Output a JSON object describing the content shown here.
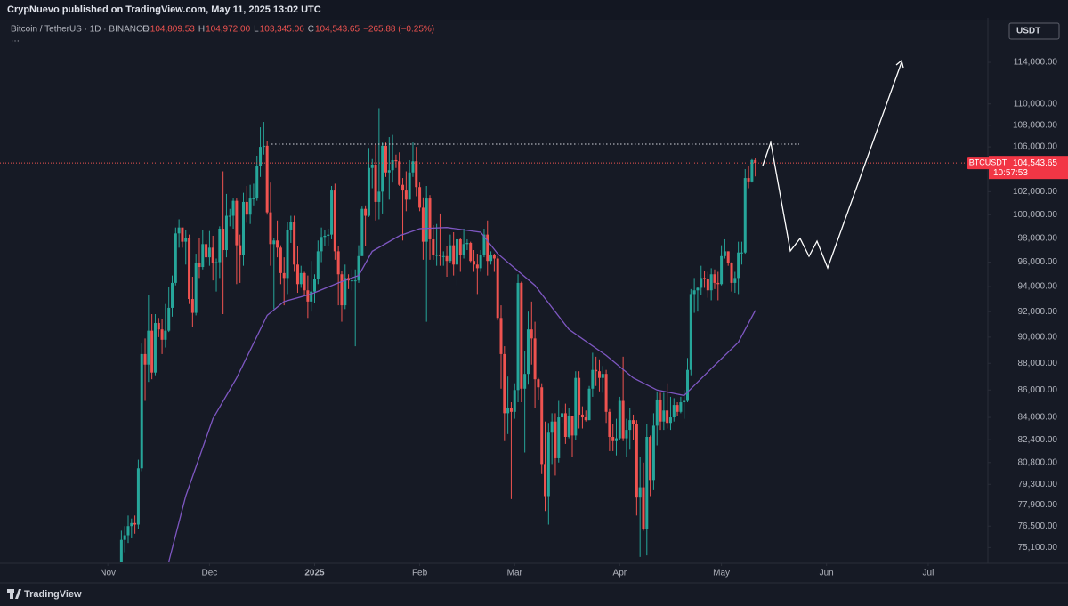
{
  "header": {
    "publisher": "CrypNuevo published on TradingView.com, May 11, 2025 13:02 UTC",
    "symbol": "Bitcoin / TetherUS · 1D · BINANCE",
    "ohlc": [
      {
        "key": "O",
        "value": "104,809.53"
      },
      {
        "key": "H",
        "value": "104,972.00"
      },
      {
        "key": "L",
        "value": "103,345.06"
      },
      {
        "key": "C",
        "value": "104,543.65"
      }
    ],
    "change": "−265.88 (−0.25%)",
    "more": "···",
    "currency": "USDT",
    "brand": "TradingView"
  },
  "chart_data": {
    "type": "candlestick",
    "log_scale": true,
    "up_color": "#26a69a",
    "down_color": "#ef5350",
    "ylim": [
      74150,
      118450
    ],
    "xlim": [
      -35.8,
      255.6
    ],
    "yticks": [
      {
        "value": 114000,
        "label": "114,000.00"
      },
      {
        "value": 110000,
        "label": "110,000.00"
      },
      {
        "value": 108000,
        "label": "108,000.00"
      },
      {
        "value": 106000,
        "label": "106,000.00"
      },
      {
        "value": 102000,
        "label": "102,000.00"
      },
      {
        "value": 100000,
        "label": "100,000.00"
      },
      {
        "value": 98000,
        "label": "98,000.00"
      },
      {
        "value": 96000,
        "label": "96,000.00"
      },
      {
        "value": 94000,
        "label": "94,000.00"
      },
      {
        "value": 92000,
        "label": "92,000.00"
      },
      {
        "value": 90000,
        "label": "90,000.00"
      },
      {
        "value": 88000,
        "label": "88,000.00"
      },
      {
        "value": 86000,
        "label": "86,000.00"
      },
      {
        "value": 84000,
        "label": "84,000.00"
      },
      {
        "value": 82400,
        "label": "82,400.00"
      },
      {
        "value": 80800,
        "label": "80,800.00"
      },
      {
        "value": 79300,
        "label": "79,300.00"
      },
      {
        "value": 77900,
        "label": "77,900.00"
      },
      {
        "value": 76500,
        "label": "76,500.00"
      },
      {
        "value": 75100,
        "label": "75,100.00"
      }
    ],
    "xticks": [
      {
        "value": -4,
        "label": "Nov"
      },
      {
        "value": 26,
        "label": "Dec"
      },
      {
        "value": 57,
        "label": "2025"
      },
      {
        "value": 88,
        "label": "Feb"
      },
      {
        "value": 116,
        "label": "Mar"
      },
      {
        "value": 147,
        "label": "Apr"
      },
      {
        "value": 177,
        "label": "May"
      },
      {
        "value": 208,
        "label": "Jun"
      },
      {
        "value": 238,
        "label": "Jul"
      }
    ],
    "symbol_tag": "BTCUSDT",
    "last_price_label": "104,543.65",
    "countdown": "10:57:53",
    "open": [
      74000,
      75600,
      75900,
      76500,
      76700,
      76600,
      80400,
      88700,
      87900,
      90500,
      87300,
      91100,
      90600,
      89800,
      90500,
      92300,
      94300,
      98400,
      98900,
      97700,
      98000,
      93000,
      91900,
      95900,
      95600,
      97500,
      96400,
      97200,
      95900,
      96000,
      98800,
      97000,
      99900,
      99900,
      101200,
      97400,
      96600,
      101100,
      100000,
      101400,
      101400,
      104300,
      106000,
      106100,
      100200,
      97500,
      97800,
      97200,
      95100,
      94700,
      98700,
      99400,
      95800,
      94200,
      95100,
      93700,
      92800,
      93600,
      94600,
      96900,
      98100,
      98200,
      98300,
      102100,
      96900,
      95000,
      92500,
      94700,
      94500,
      94500,
      94500,
      96500,
      100500,
      99900,
      104100,
      104400,
      101100,
      102000,
      106100,
      103700,
      103900,
      104800,
      104700,
      102600,
      102100,
      101300,
      103700,
      104700,
      102400,
      100600,
      97700,
      101400,
      97900,
      96600,
      96600,
      96500,
      96500,
      96100,
      97400,
      95800,
      97900,
      96600,
      97500,
      97600,
      96100,
      95800,
      95500,
      96600,
      98300,
      96100,
      96600,
      96300,
      91500,
      88700,
      84300,
      84700,
      84400,
      86000,
      94300,
      86100,
      87200,
      90600,
      89900,
      86800,
      86200,
      80700,
      78500,
      82900,
      83700,
      81100,
      84000,
      84300,
      82600,
      84100,
      82700,
      86900,
      84200,
      84000,
      83800,
      86100,
      87500,
      87400,
      86900,
      87200,
      84400,
      82600,
      82300,
      82500,
      85200,
      82500,
      83100,
      83800,
      83500,
      78400,
      79100,
      76300,
      82600,
      79600,
      83400,
      85300,
      83700,
      84500,
      83600,
      84000,
      84900,
      84400,
      85100,
      85200,
      87500,
      93400,
      93700,
      93900,
      94700,
      94600,
      93700,
      95000,
      94300,
      94200,
      96500,
      96900,
      95900,
      94300,
      94700,
      96800,
      96800,
      103200,
      102900,
      104809.53
    ],
    "high": [
      76200,
      76500,
      77200,
      77000,
      77200,
      81000,
      89500,
      89900,
      93300,
      91800,
      91800,
      91500,
      91400,
      92600,
      94000,
      94900,
      98900,
      99600,
      98700,
      98700,
      98300,
      94800,
      96700,
      98000,
      98700,
      97800,
      98600,
      98200,
      96300,
      99000,
      103800,
      101800,
      100500,
      101400,
      101400,
      98300,
      101900,
      102500,
      102600,
      102700,
      105200,
      107800,
      108300,
      106500,
      102800,
      98000,
      99500,
      97400,
      96400,
      99400,
      99900,
      99900,
      97300,
      95700,
      95200,
      94900,
      96100,
      95000,
      97800,
      98900,
      98700,
      98800,
      102500,
      102700,
      97300,
      95300,
      95800,
      95000,
      95400,
      95400,
      97400,
      100700,
      100800,
      105900,
      104900,
      106300,
      109600,
      106400,
      106400,
      106900,
      107100,
      105300,
      105500,
      103200,
      103800,
      104800,
      106400,
      106000,
      102800,
      101500,
      102500,
      101700,
      99100,
      99200,
      100100,
      96900,
      97300,
      98300,
      98500,
      98100,
      98000,
      98800,
      97900,
      97700,
      97000,
      96700,
      97000,
      98800,
      99500,
      96900,
      96700,
      96500,
      92500,
      89300,
      87000,
      85100,
      86500,
      95000,
      94400,
      88900,
      92000,
      92800,
      91200,
      86900,
      86500,
      83700,
      83600,
      84300,
      84300,
      85200,
      84700,
      85000,
      84700,
      84100,
      87400,
      87400,
      84800,
      84500,
      86300,
      88800,
      88500,
      88300,
      87800,
      87500,
      84600,
      83500,
      83900,
      85500,
      88500,
      83900,
      84700,
      84200,
      83800,
      81200,
      80800,
      83500,
      82700,
      84300,
      85900,
      85800,
      85800,
      86500,
      85500,
      85400,
      85100,
      85500,
      86000,
      88400,
      93800,
      94700,
      94000,
      95700,
      95300,
      95200,
      95500,
      95400,
      95200,
      97400,
      97900,
      96900,
      96000,
      95200,
      97700,
      97700,
      104000,
      104300,
      104900,
      104972
    ],
    "low": [
      73500,
      74800,
      75400,
      75700,
      76000,
      76300,
      80200,
      85200,
      86600,
      86800,
      87100,
      90000,
      88700,
      89200,
      90400,
      91600,
      94100,
      97200,
      97200,
      95800,
      92600,
      90800,
      91700,
      94700,
      95400,
      96000,
      95700,
      94500,
      93600,
      94700,
      91800,
      96400,
      99000,
      98800,
      94200,
      94300,
      95700,
      99300,
      99200,
      100800,
      101200,
      103300,
      105300,
      100000,
      95700,
      92200,
      96400,
      94200,
      92500,
      93400,
      97600,
      95200,
      93500,
      93900,
      93300,
      91500,
      92000,
      92700,
      94200,
      96000,
      97300,
      97300,
      97900,
      96200,
      92500,
      91200,
      92200,
      93800,
      93700,
      89300,
      94300,
      96500,
      97300,
      99800,
      102300,
      99500,
      99600,
      100100,
      103300,
      101300,
      102800,
      104100,
      102500,
      97800,
      100300,
      101300,
      103300,
      101600,
      100300,
      96200,
      91200,
      96200,
      96200,
      95700,
      95700,
      95700,
      94800,
      95900,
      94900,
      94100,
      95200,
      96300,
      97000,
      96000,
      95200,
      93400,
      95200,
      96400,
      94900,
      95800,
      95200,
      91300,
      86100,
      82300,
      82800,
      78300,
      83900,
      85100,
      85100,
      81500,
      86400,
      87900,
      84700,
      85300,
      80000,
      77500,
      76600,
      80700,
      79900,
      80800,
      83600,
      82100,
      82500,
      81200,
      82400,
      83200,
      83200,
      83700,
      83800,
      85500,
      86300,
      85900,
      85800,
      83600,
      81600,
      81600,
      81300,
      82400,
      82300,
      81200,
      81700,
      82400,
      77200,
      74500,
      76200,
      74600,
      78500,
      78900,
      82000,
      83100,
      83100,
      83200,
      83100,
      83700,
      84100,
      84300,
      83900,
      85100,
      87100,
      91900,
      92000,
      93300,
      93900,
      93100,
      92900,
      93800,
      92900,
      94100,
      96300,
      95700,
      93600,
      93500,
      93400,
      95800,
      96700,
      102300,
      102800,
      103345.06
    ],
    "close": [
      75600,
      75900,
      76500,
      76700,
      76600,
      80400,
      88700,
      87900,
      90500,
      87300,
      91100,
      90600,
      89800,
      90500,
      92300,
      94300,
      98400,
      98900,
      97700,
      98000,
      93000,
      91900,
      95900,
      95600,
      97500,
      96400,
      97200,
      95900,
      96000,
      98800,
      97000,
      99900,
      99900,
      101200,
      97400,
      96600,
      101100,
      100000,
      101400,
      101400,
      104300,
      106000,
      106100,
      100200,
      97500,
      97800,
      97200,
      95100,
      94700,
      98700,
      99400,
      95800,
      94200,
      95100,
      93700,
      92800,
      93600,
      94600,
      96900,
      98100,
      98200,
      98300,
      102100,
      96900,
      95000,
      92500,
      94700,
      94500,
      94500,
      94500,
      96500,
      100500,
      99900,
      104100,
      104400,
      101100,
      102000,
      106100,
      103700,
      103900,
      104800,
      104700,
      102600,
      102100,
      101300,
      103700,
      104700,
      102400,
      100600,
      97700,
      101400,
      97900,
      96600,
      96600,
      96500,
      96500,
      96100,
      97400,
      95800,
      97900,
      96600,
      97500,
      97600,
      96100,
      95800,
      95500,
      96600,
      98300,
      96100,
      96600,
      96300,
      91500,
      88700,
      84300,
      84700,
      84400,
      86000,
      94300,
      86100,
      87200,
      90600,
      89900,
      86800,
      86200,
      80700,
      78500,
      82900,
      83700,
      81100,
      84000,
      84300,
      82600,
      84100,
      82700,
      86900,
      84200,
      84000,
      83800,
      86100,
      87500,
      87400,
      86900,
      87200,
      84400,
      82600,
      82300,
      82500,
      85200,
      82500,
      83100,
      83800,
      83500,
      78400,
      79100,
      76300,
      82600,
      79600,
      83400,
      85300,
      83700,
      84500,
      83600,
      84000,
      84900,
      84400,
      85100,
      85200,
      87500,
      93400,
      93700,
      93900,
      94700,
      94600,
      93700,
      95000,
      94300,
      94200,
      96500,
      96900,
      95900,
      94300,
      94700,
      96800,
      96800,
      103200,
      102900,
      104809.53,
      104543.65
    ],
    "ma": {
      "color": "#7e57c2",
      "x": [
        14,
        19,
        27,
        34,
        43,
        48,
        56,
        64,
        70,
        74,
        82,
        88,
        96,
        106,
        111,
        122,
        132,
        143,
        151,
        158,
        166,
        174,
        182,
        187
      ],
      "values": [
        74200,
        78500,
        83900,
        86900,
        91700,
        92800,
        93400,
        94300,
        94900,
        96900,
        98200,
        98800,
        98900,
        98500,
        96700,
        94100,
        90600,
        88600,
        86900,
        86000,
        85600,
        87600,
        89600,
        92100
      ]
    }
  }
}
